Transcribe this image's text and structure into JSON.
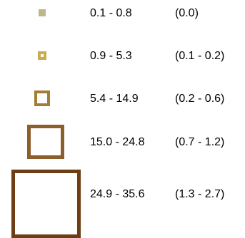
{
  "legend": {
    "items": [
      {
        "range": "0.1 - 0.8",
        "secondary": "(0.0)",
        "color": "#bfb68a"
      },
      {
        "range": "0.9 - 5.3",
        "secondary": "(0.1 - 0.2)",
        "color": "#c9ad4e"
      },
      {
        "range": "5.4 - 14.9",
        "secondary": "(0.2 - 0.6)",
        "color": "#a37d33"
      },
      {
        "range": "15.0 - 24.8",
        "secondary": "(0.7 - 1.2)",
        "color": "#8c5e2c"
      },
      {
        "range": "24.9 - 35.6",
        "secondary": "(1.3 - 2.7)",
        "color": "#6e3d14"
      }
    ]
  }
}
